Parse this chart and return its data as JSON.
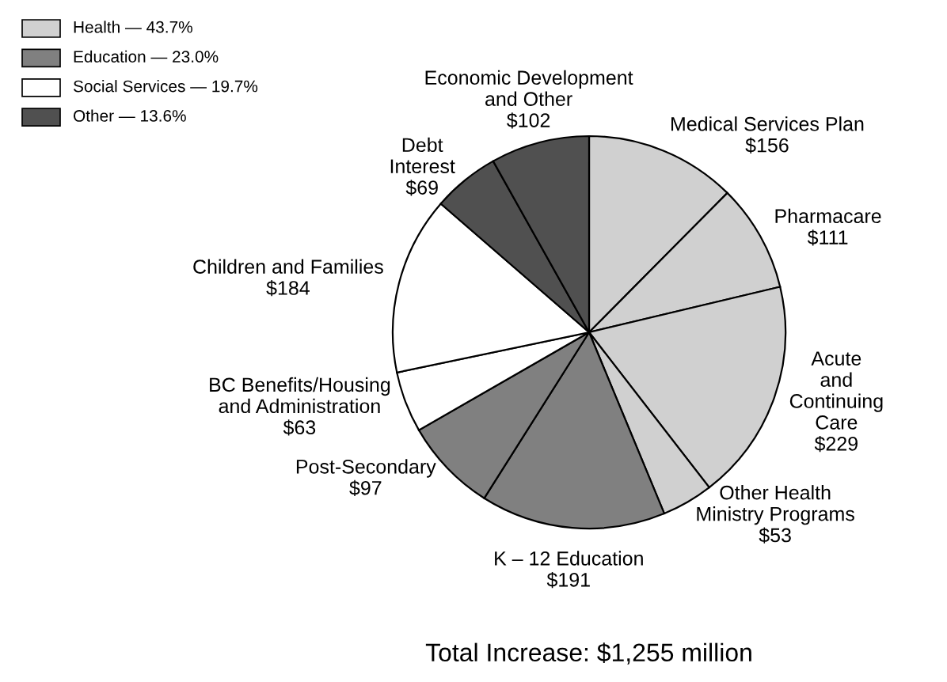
{
  "chart_data": {
    "type": "pie",
    "categories": [
      "Medical Services Plan",
      "Pharmacare",
      "Acute\nand\nContinuing\nCare",
      "Other Health\nMinistry Programs",
      "K – 12 Education",
      "Post-Secondary",
      "BC Benefits/Housing\nand Administration",
      "Children and Families",
      "Debt\nInterest",
      "Economic Development\nand Other"
    ],
    "values": [
      156,
      111,
      229,
      53,
      191,
      97,
      63,
      184,
      69,
      102
    ],
    "value_labels": [
      "$156",
      "$111",
      "$229",
      "$53",
      "$191",
      "$97",
      "$63",
      "$184",
      "$69",
      "$102"
    ],
    "colors": [
      "#d0d0d0",
      "#d0d0d0",
      "#d0d0d0",
      "#d0d0d0",
      "#808080",
      "#808080",
      "#ffffff",
      "#ffffff",
      "#505050",
      "#505050"
    ],
    "annotations": [
      "Health — 43.7%",
      "Education — 23.0%",
      "Social Services — 19.7%",
      "Other — 13.6%",
      "Total Increase: $1,255 million"
    ]
  }
}
